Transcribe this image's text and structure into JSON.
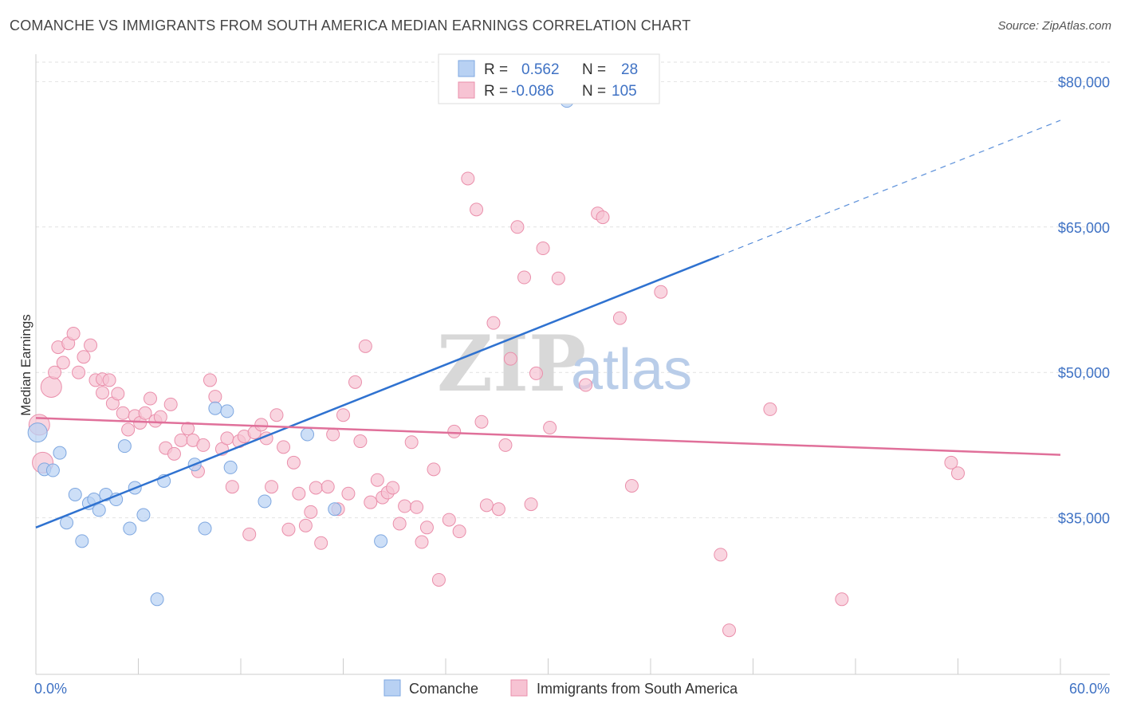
{
  "title": "COMANCHE VS IMMIGRANTS FROM SOUTH AMERICA MEDIAN EARNINGS CORRELATION CHART",
  "source": "Source: ZipAtlas.com",
  "watermark": {
    "zip": "ZIP",
    "atlas": "atlas"
  },
  "colors": {
    "comanche_fill": "#b8d1f3",
    "comanche_stroke": "#7ea7e0",
    "comanche_line": "#2f72d0",
    "immig_fill": "#f7c3d3",
    "immig_stroke": "#ea8fab",
    "immig_line": "#e0709a",
    "grid": "#e2e2e2",
    "axis_text": "#3f72c4"
  },
  "legend": {
    "rows": [
      {
        "r_label": "R =",
        "r_value": "0.562",
        "n_label": "N =",
        "n_value": "28"
      },
      {
        "r_label": "R =",
        "r_value": "-0.086",
        "n_label": "N =",
        "n_value": "105"
      }
    ]
  },
  "chart_data": {
    "type": "scatter",
    "title": "COMANCHE VS IMMIGRANTS FROM SOUTH AMERICA MEDIAN EARNINGS CORRELATION CHART",
    "xlabel": "",
    "ylabel": "Median Earnings",
    "xlim": [
      0,
      60
    ],
    "ylim": [
      20500,
      82000
    ],
    "x_tick_labels": [
      "0.0%",
      "60.0%"
    ],
    "y_ticks": [
      35000,
      50000,
      65000,
      80000
    ],
    "y_tick_labels": [
      "$35,000",
      "$50,000",
      "$65,000",
      "$80,000"
    ],
    "grid": true,
    "legend_position": "top-center",
    "series": [
      {
        "name": "Comanche",
        "R": 0.562,
        "N": 28,
        "trend": {
          "x0": 0,
          "y0": 34000,
          "x1": 40,
          "y1": 62000,
          "dash_x1": 60,
          "dash_y1": 76000
        },
        "points": [
          [
            0.1,
            43800
          ],
          [
            0.5,
            40000
          ],
          [
            1.0,
            39900
          ],
          [
            1.4,
            41700
          ],
          [
            1.8,
            34500
          ],
          [
            2.3,
            37400
          ],
          [
            2.7,
            32600
          ],
          [
            3.1,
            36500
          ],
          [
            3.4,
            36900
          ],
          [
            3.7,
            35800
          ],
          [
            4.1,
            37400
          ],
          [
            4.7,
            36900
          ],
          [
            5.2,
            42400
          ],
          [
            5.5,
            33900
          ],
          [
            5.8,
            38100
          ],
          [
            6.3,
            35300
          ],
          [
            7.1,
            26600
          ],
          [
            7.5,
            38800
          ],
          [
            9.3,
            40500
          ],
          [
            9.9,
            33900
          ],
          [
            10.5,
            46300
          ],
          [
            11.2,
            46000
          ],
          [
            11.4,
            40200
          ],
          [
            13.4,
            36700
          ],
          [
            15.9,
            43600
          ],
          [
            17.5,
            35900
          ],
          [
            20.2,
            32600
          ],
          [
            31.1,
            78000
          ]
        ]
      },
      {
        "name": "Immigrants from South America",
        "R": -0.086,
        "N": 105,
        "trend": {
          "x0": 0,
          "y0": 45300,
          "x1": 60,
          "y1": 41500
        },
        "points": [
          [
            0.2,
            44600
          ],
          [
            0.4,
            40700
          ],
          [
            0.9,
            48500
          ],
          [
            1.1,
            50000
          ],
          [
            1.3,
            52600
          ],
          [
            1.6,
            51000
          ],
          [
            1.9,
            53000
          ],
          [
            2.2,
            54000
          ],
          [
            2.5,
            50000
          ],
          [
            2.8,
            51600
          ],
          [
            3.2,
            52800
          ],
          [
            3.5,
            49200
          ],
          [
            3.9,
            47900
          ],
          [
            3.9,
            49300
          ],
          [
            4.3,
            49200
          ],
          [
            4.5,
            46800
          ],
          [
            4.8,
            47800
          ],
          [
            5.1,
            45800
          ],
          [
            5.4,
            44100
          ],
          [
            5.8,
            45500
          ],
          [
            6.1,
            44800
          ],
          [
            6.4,
            45800
          ],
          [
            6.7,
            47300
          ],
          [
            7.0,
            45000
          ],
          [
            7.3,
            45400
          ],
          [
            7.6,
            42200
          ],
          [
            7.9,
            46700
          ],
          [
            8.1,
            41600
          ],
          [
            8.5,
            43000
          ],
          [
            8.9,
            44200
          ],
          [
            9.2,
            43000
          ],
          [
            9.5,
            39800
          ],
          [
            9.8,
            42500
          ],
          [
            10.2,
            49200
          ],
          [
            10.5,
            47500
          ],
          [
            10.9,
            42100
          ],
          [
            11.2,
            43200
          ],
          [
            11.5,
            38200
          ],
          [
            11.9,
            42900
          ],
          [
            12.2,
            43400
          ],
          [
            12.5,
            33300
          ],
          [
            12.8,
            43800
          ],
          [
            13.2,
            44600
          ],
          [
            13.5,
            43200
          ],
          [
            13.8,
            38200
          ],
          [
            14.1,
            45600
          ],
          [
            14.5,
            42300
          ],
          [
            14.8,
            33800
          ],
          [
            15.1,
            40700
          ],
          [
            15.4,
            37500
          ],
          [
            15.8,
            34200
          ],
          [
            16.1,
            35600
          ],
          [
            16.4,
            38100
          ],
          [
            16.7,
            32400
          ],
          [
            17.1,
            38200
          ],
          [
            17.4,
            43600
          ],
          [
            17.7,
            35900
          ],
          [
            18.0,
            45600
          ],
          [
            18.3,
            37500
          ],
          [
            18.7,
            49000
          ],
          [
            19.0,
            42900
          ],
          [
            19.3,
            52700
          ],
          [
            19.6,
            36600
          ],
          [
            20.0,
            38900
          ],
          [
            20.3,
            37100
          ],
          [
            20.6,
            37600
          ],
          [
            20.9,
            38100
          ],
          [
            21.3,
            34400
          ],
          [
            21.6,
            36200
          ],
          [
            22.0,
            42800
          ],
          [
            22.3,
            36100
          ],
          [
            22.6,
            32500
          ],
          [
            22.9,
            34000
          ],
          [
            23.3,
            40000
          ],
          [
            23.6,
            28600
          ],
          [
            24.2,
            34800
          ],
          [
            24.5,
            43900
          ],
          [
            24.8,
            33600
          ],
          [
            25.3,
            70000
          ],
          [
            25.8,
            66800
          ],
          [
            26.1,
            44900
          ],
          [
            26.4,
            36300
          ],
          [
            26.8,
            55100
          ],
          [
            27.1,
            35900
          ],
          [
            27.5,
            42500
          ],
          [
            27.8,
            51400
          ],
          [
            28.2,
            65000
          ],
          [
            28.6,
            59800
          ],
          [
            29.0,
            36400
          ],
          [
            29.3,
            49900
          ],
          [
            29.7,
            62800
          ],
          [
            30.1,
            44300
          ],
          [
            30.6,
            59700
          ],
          [
            32.2,
            48700
          ],
          [
            32.9,
            66400
          ],
          [
            33.2,
            66000
          ],
          [
            34.2,
            55600
          ],
          [
            34.9,
            38300
          ],
          [
            36.6,
            58300
          ],
          [
            40.1,
            31200
          ],
          [
            40.6,
            23400
          ],
          [
            43.0,
            46200
          ],
          [
            47.2,
            26600
          ],
          [
            53.6,
            40700
          ],
          [
            54.0,
            39600
          ]
        ]
      }
    ]
  }
}
